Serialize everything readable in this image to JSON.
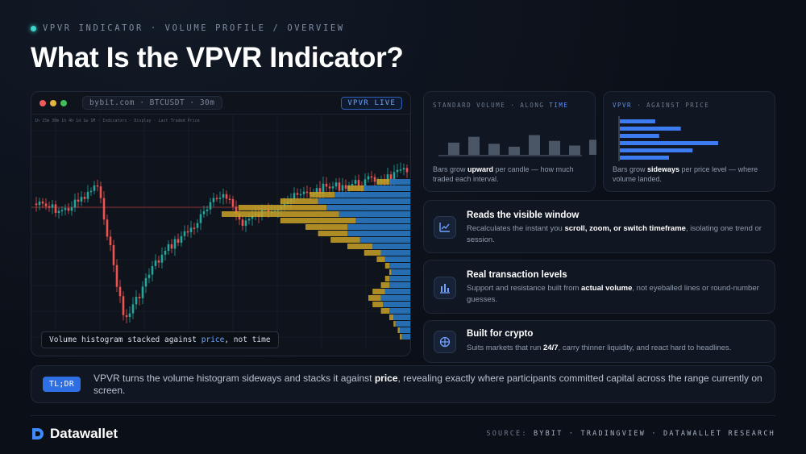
{
  "eyebrow": "VPVR INDICATOR · VOLUME PROFILE / OVERVIEW",
  "title": "What Is the VPVR Indicator?",
  "chart_panel": {
    "url": "bybit.com · BTCUSDT · 30m",
    "live_badge": "VPVR LIVE",
    "caption_pre": "Volume histogram stacked against ",
    "caption_highlight": "price",
    "caption_post": ", not time"
  },
  "standard_volume_card": {
    "label_pre": "STANDARD VOLUME · ALONG ",
    "label_accent": "TIME",
    "text_pre": "Bars grow ",
    "text_bold": "upward",
    "text_post": " per candle — how much traded each interval.",
    "bars": [
      0.42,
      0.62,
      0.38,
      0.28,
      0.68,
      0.48,
      0.32,
      0.52
    ]
  },
  "vpvr_card": {
    "label_accent": "VPVR",
    "label_post": " · AGAINST PRICE",
    "text_pre": "Bars grow ",
    "text_bold": "sideways",
    "text_post": " per price level — where volume landed.",
    "bars": [
      0.36,
      0.62,
      0.4,
      1.0,
      0.74,
      0.5
    ]
  },
  "features": [
    {
      "title": "Reads the visible window",
      "desc_pre": "Recalculates the instant you ",
      "desc_bold": "scroll, zoom, or switch timeframe",
      "desc_post": ", isolating one trend or session.",
      "icon": "line-chart-icon"
    },
    {
      "title": "Real transaction levels",
      "desc_pre": "Support and resistance built from ",
      "desc_bold": "actual volume",
      "desc_post": ", not eyeballed lines or round-number guesses.",
      "icon": "bar-chart-icon"
    },
    {
      "title": "Built for crypto",
      "desc_pre": "Suits markets that run ",
      "desc_bold": "24/7",
      "desc_post": ", carry thinner liquidity, and react hard to headlines.",
      "icon": "globe-icon"
    }
  ],
  "tldr": {
    "badge": "TL;DR",
    "text_pre": "VPVR turns the volume histogram sideways and stacks it against ",
    "text_bold": "price",
    "text_post": ", revealing exactly where participants committed capital across the range currently on screen."
  },
  "footer": {
    "brand": "Datawallet",
    "source_label": "SOURCE:",
    "source_values": "BYBIT · TRADINGVIEW · DATAWALLET RESEARCH"
  },
  "colors": {
    "background": "#0b0f17",
    "accent_blue": "#2f6fe4",
    "vpvr_yellow": "#c9a227",
    "vpvr_blue": "#2a78c2",
    "candle_up": "#26a69a",
    "candle_down": "#ef5350",
    "teal_dot": "#3dd6c8"
  }
}
